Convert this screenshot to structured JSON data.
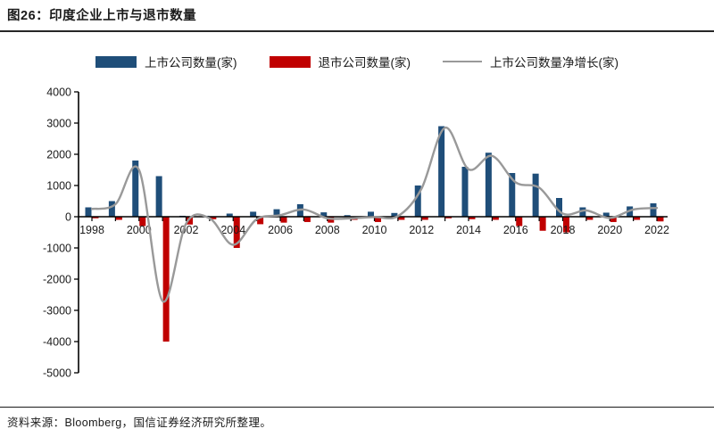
{
  "figure": {
    "title": "图26：印度企业上市与退市数量",
    "source": "资料来源：Bloomberg，国信证券经济研究所整理。"
  },
  "legend": [
    {
      "label": "上市公司数量(家)",
      "color": "#1F4E79",
      "swatch": "bar"
    },
    {
      "label": "退市公司数量(家)",
      "color": "#C00000",
      "swatch": "bar"
    },
    {
      "label": "上市公司数量净增长(家)",
      "color": "#999999",
      "swatch": "line"
    }
  ],
  "colors": {
    "listed_bar": "#1F4E79",
    "delisted_bar": "#C00000",
    "net_line": "#999999",
    "axis": "#000000"
  },
  "chart_data": {
    "type": "bar",
    "subtype": "bars-with-smooth-line",
    "categories": [
      1998,
      1999,
      2000,
      2001,
      2002,
      2003,
      2004,
      2005,
      2006,
      2007,
      2008,
      2009,
      2010,
      2011,
      2012,
      2013,
      2014,
      2015,
      2016,
      2017,
      2018,
      2019,
      2020,
      2021,
      2022
    ],
    "series": [
      {
        "name": "上市公司数量(家)",
        "type": "bar",
        "color": "#1F4E79",
        "values": [
          300,
          500,
          1800,
          1300,
          30,
          30,
          100,
          160,
          240,
          400,
          140,
          50,
          160,
          120,
          1000,
          2900,
          1600,
          2050,
          1400,
          1380,
          600,
          300,
          130,
          330,
          430
        ]
      },
      {
        "name": "退市公司数量(家)",
        "type": "bar",
        "color": "#C00000",
        "values": [
          -50,
          -100,
          -300,
          -4000,
          -250,
          -80,
          -1000,
          -240,
          -190,
          -170,
          -190,
          -100,
          -170,
          -100,
          -100,
          -50,
          -80,
          -100,
          -300,
          -450,
          -500,
          -100,
          -170,
          -100,
          -150
        ]
      },
      {
        "name": "上市公司数量净增长(家)",
        "type": "line",
        "color": "#999999",
        "values": [
          250,
          400,
          1500,
          -2700,
          -220,
          -50,
          -900,
          -80,
          50,
          230,
          -50,
          -50,
          -10,
          20,
          900,
          2850,
          1520,
          1950,
          1100,
          930,
          100,
          200,
          -40,
          230,
          280
        ]
      }
    ],
    "ylim": [
      -5000,
      4000
    ],
    "ytick_step": 1000,
    "ytick_labels": [
      "4000",
      "3000",
      "2000",
      "1000",
      "0",
      "-1000",
      "-2000",
      "-3000",
      "-4000",
      "-5000"
    ],
    "xtick_label_step": 2,
    "xtick_labels": [
      "1998",
      "2000",
      "2002",
      "2004",
      "2006",
      "2008",
      "2010",
      "2012",
      "2014",
      "2016",
      "2018",
      "2020",
      "2022"
    ],
    "grid": false,
    "legend_position": "top"
  }
}
